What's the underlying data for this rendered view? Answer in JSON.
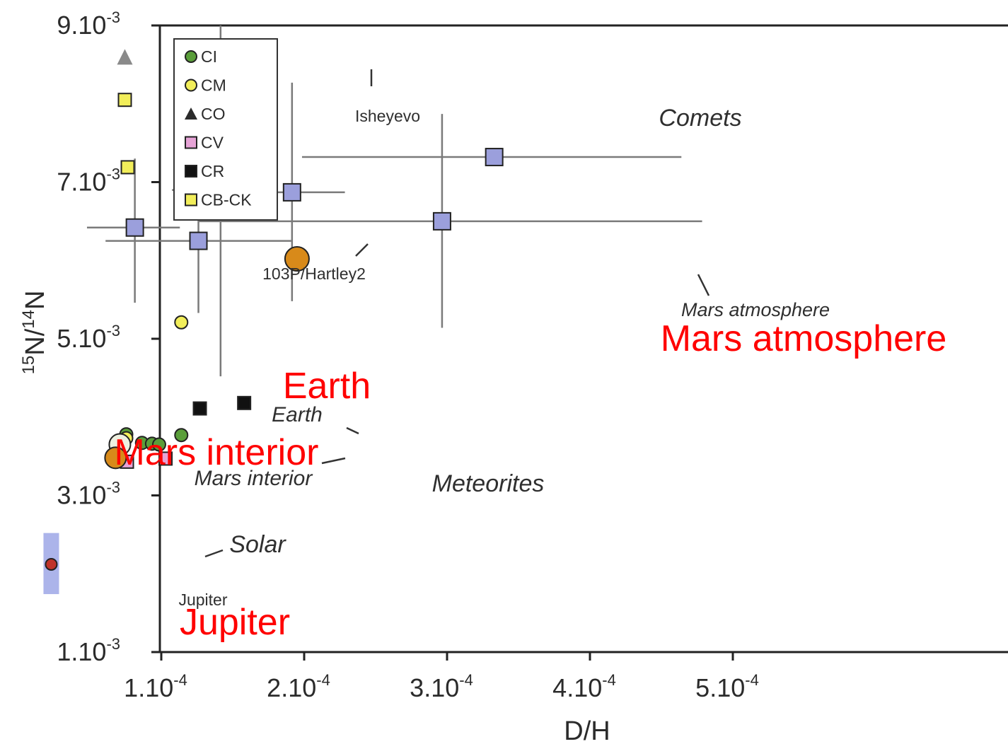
{
  "chart_data": {
    "type": "scatter",
    "xlabel": "D/H",
    "ylabel_parts": {
      "sup": "15",
      "a": "N/",
      "sup2": "14",
      "b": "N"
    },
    "xlim": [
      0,
      0.00059
    ],
    "ylim": [
      0.0011,
      0.0091
    ],
    "x_ticks": [
      {
        "value": 0.0001,
        "base": "1.10",
        "exp": "-4"
      },
      {
        "value": 0.0002,
        "base": "2.10",
        "exp": "-4"
      },
      {
        "value": 0.0003,
        "base": "3.10",
        "exp": "-4"
      },
      {
        "value": 0.0004,
        "base": "4.10",
        "exp": "-4"
      },
      {
        "value": 0.0005,
        "base": "5.10",
        "exp": "-4"
      }
    ],
    "y_ticks": [
      {
        "value": 0.0011,
        "base": "1.10",
        "exp": "-3"
      },
      {
        "value": 0.0031,
        "base": "3.10",
        "exp": "-3"
      },
      {
        "value": 0.0051,
        "base": "5.10",
        "exp": "-3"
      },
      {
        "value": 0.0071,
        "base": "7.10",
        "exp": "-3"
      },
      {
        "value": 0.0091,
        "base": "9.10",
        "exp": "-3"
      }
    ],
    "legend": [
      {
        "label": "CI",
        "marker": "circle",
        "color": "#5a9e3a"
      },
      {
        "label": "CM",
        "marker": "circle",
        "color": "#f2ee5a"
      },
      {
        "label": "CO",
        "marker": "triangle",
        "color": "#2b2b2b"
      },
      {
        "label": "CV",
        "marker": "square",
        "color": "#e6a3d6"
      },
      {
        "label": "CR",
        "marker": "square",
        "color": "#111111"
      },
      {
        "label": "CB-CK",
        "marker": "square",
        "color": "#f2ee5a"
      }
    ],
    "series": [
      {
        "name": "CI",
        "marker": "circle",
        "color": "#5a9e3a",
        "points": [
          [
            7.55e-05,
            0.00388
          ],
          [
            8.65e-05,
            0.00377
          ],
          [
            9.35e-05,
            0.00376
          ],
          [
            9.85e-05,
            0.00375
          ],
          [
            0.000114,
            0.00387
          ]
        ]
      },
      {
        "name": "CM",
        "marker": "circle",
        "color": "#f2ee5a",
        "points": [
          [
            7.55e-05,
            0.00383
          ],
          [
            0.000114,
            0.00531
          ]
        ]
      },
      {
        "name": "CV",
        "marker": "square",
        "color": "#e6a3d6",
        "points": [
          [
            7.6e-05,
            0.00353
          ],
          [
            0.000103,
            0.00357
          ]
        ]
      },
      {
        "name": "CR",
        "marker": "square",
        "color": "#111111",
        "points": [
          [
            0.000127,
            0.00421
          ],
          [
            0.000158,
            0.00428
          ]
        ]
      },
      {
        "name": "CB-CK",
        "marker": "square",
        "color": "#f2ee5a",
        "points": [
          [
            7.45e-05,
            0.00815
          ],
          [
            7.65e-05,
            0.00729
          ]
        ]
      },
      {
        "name": "CO",
        "marker": "triangle",
        "color": "#8a8a8a",
        "points": [
          [
            7.45e-05,
            0.00869
          ]
        ]
      },
      {
        "name": "Comets",
        "marker": "square",
        "color": "#9b9fdc",
        "points": [
          {
            "x": 8.15e-05,
            "y": 0.00652,
            "xerr": [
              3.35e-05,
              3.15e-05
            ],
            "yerr": [
              0.00096,
              0.00088
            ]
          },
          {
            "x": 0.000126,
            "y": 0.00635,
            "xerr": [
              6.5e-05,
              6.5e-05
            ],
            "yerr": [
              0.00092,
              0.00088
            ]
          },
          {
            "x": 0.0001415,
            "y": 0.007,
            "xerr": [
              3.4e-05,
              3.1e-05
            ],
            "yerr": [
              0.00238,
              0.00272
            ]
          },
          {
            "x": 0.0001915,
            "y": 0.00697,
            "xerr": [
              3.5e-05,
              3.7e-05
            ],
            "yerr": [
              0.00139,
              0.0014
            ]
          },
          {
            "x": 0.0002965,
            "y": 0.0066,
            "xerr": [
              0.00017,
              0.000182
            ],
            "yerr": [
              0.00136,
              0.00137
            ]
          },
          {
            "x": 0.000333,
            "y": 0.00742,
            "xerr": [
              0.0001345,
              0.000131
            ],
            "yerr": [
              0.0,
              0.0
            ]
          }
        ]
      },
      {
        "name": "Earth",
        "marker": "circle",
        "color": "#eef0e0",
        "points": [
          [
            7.1e-05,
            0.00375
          ]
        ]
      },
      {
        "name": "Mars interior",
        "marker": "circle",
        "color": "#d88a1a",
        "points": [
          [
            6.8e-05,
            0.00358
          ]
        ]
      },
      {
        "name": "Mars atmosphere",
        "marker": "circle",
        "color": "#d88a1a",
        "points": [
          [
            0.000195,
            0.00612
          ]
        ]
      },
      {
        "name": "Solar",
        "marker": "circle",
        "color": "#c0342a",
        "points": [
          [
            2.3e-05,
            0.00222
          ]
        ]
      }
    ],
    "jupiter_band": {
      "x": 2.3e-05,
      "y_range": [
        0.00184,
        0.00262
      ],
      "color": "#9ea7e6"
    },
    "annotations": [
      {
        "text": "Isheyevo",
        "style": "normal",
        "color": "#2f2f2f"
      },
      {
        "text": "Comets",
        "style": "italic",
        "color": "#2f2f2f"
      },
      {
        "text": "103P/Hartley2",
        "style": "normal",
        "color": "#2f2f2f"
      },
      {
        "text": "Mars atmosphere",
        "style": "italic",
        "color": "#2f2f2f"
      },
      {
        "text": "Mars atmosphere",
        "style": "normal",
        "color": "#ff0000"
      },
      {
        "text": "Earth",
        "style": "normal",
        "color": "#ff0000"
      },
      {
        "text": "Earth",
        "style": "italic",
        "color": "#2f2f2f"
      },
      {
        "text": "Mars interior",
        "style": "normal",
        "color": "#ff0000"
      },
      {
        "text": "Mars interior",
        "style": "italic",
        "color": "#2f2f2f"
      },
      {
        "text": "Meteorites",
        "style": "italic",
        "color": "#2f2f2f"
      },
      {
        "text": "Solar",
        "style": "italic",
        "color": "#2f2f2f"
      },
      {
        "text": "Jupiter",
        "style": "normal",
        "color": "#2f2f2f"
      },
      {
        "text": "Jupiter",
        "style": "normal",
        "color": "#ff0000"
      }
    ]
  }
}
